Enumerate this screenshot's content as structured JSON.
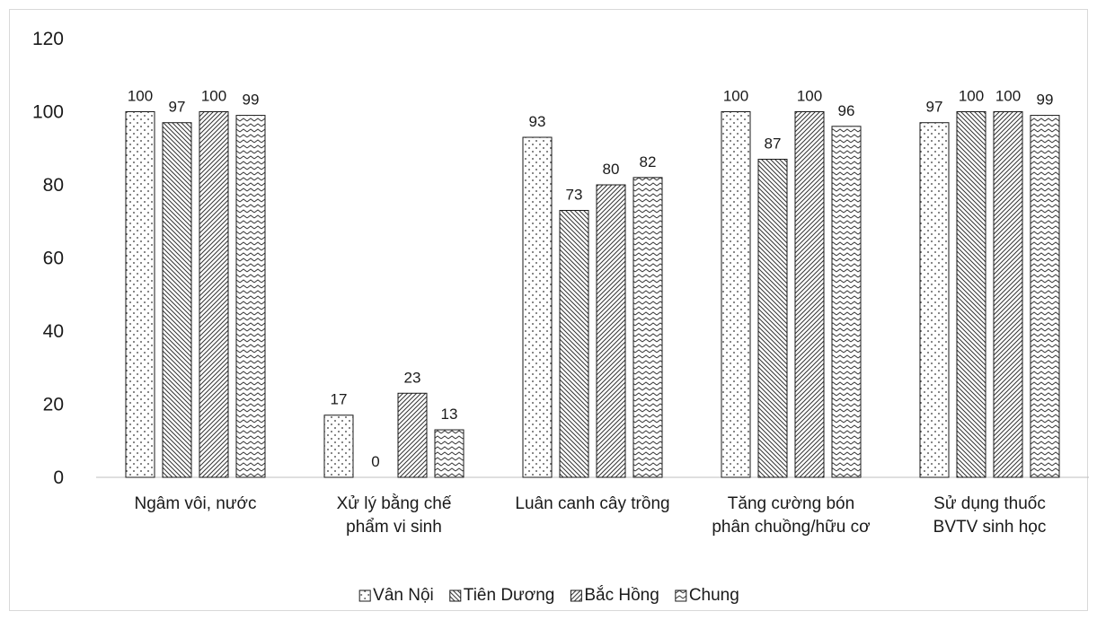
{
  "chart_data": {
    "type": "bar",
    "title": "",
    "xlabel": "",
    "ylabel": "",
    "ylim": [
      0,
      120
    ],
    "yticks": [
      0,
      20,
      40,
      60,
      80,
      100,
      120
    ],
    "grid": false,
    "legend_position": "bottom",
    "categories": [
      [
        "Ngâm vôi, nước"
      ],
      [
        "Xử lý bằng chế",
        "phẩm vi sinh"
      ],
      [
        "Luân canh cây trồng"
      ],
      [
        "Tăng cường bón",
        "phân chuồng/hữu cơ"
      ],
      [
        "Sử dụng thuốc",
        "BVTV sinh học"
      ]
    ],
    "series": [
      {
        "name": "Vân Nội",
        "pattern": "dots",
        "values": [
          100,
          17,
          93,
          100,
          97
        ]
      },
      {
        "name": "Tiên Dương",
        "pattern": "backslash-hatch",
        "values": [
          97,
          0,
          73,
          87,
          100
        ]
      },
      {
        "name": "Bắc Hồng",
        "pattern": "slash-hatch",
        "values": [
          100,
          23,
          80,
          100,
          100
        ]
      },
      {
        "name": "Chung",
        "pattern": "zigzag",
        "values": [
          99,
          13,
          82,
          96,
          99
        ]
      }
    ],
    "colors": {
      "axis": "#bfbfbf",
      "stroke": "#1a1a1a",
      "text": "#1a1a1a",
      "frame": "#d9d9d9"
    }
  }
}
